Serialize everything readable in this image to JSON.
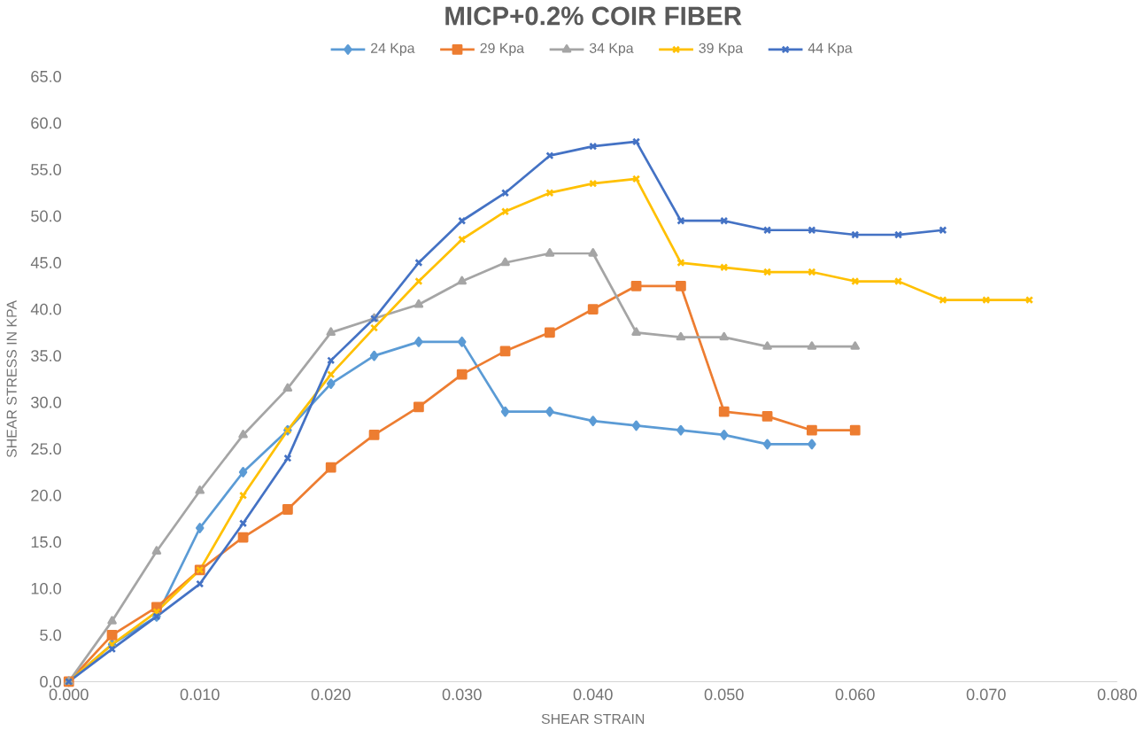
{
  "chart_data": {
    "type": "line",
    "title": "MICP+0.2% COIR FIBER",
    "xlabel": "SHEAR STRAIN",
    "ylabel": "SHEAR STRESS IN KPA",
    "legend": "top",
    "grid": false,
    "xlim": [
      0,
      0.08
    ],
    "ylim": [
      0,
      65
    ],
    "xticks": [
      {
        "value": 0,
        "label": "0.000"
      },
      {
        "value": 0.01,
        "label": "0.010"
      },
      {
        "value": 0.02,
        "label": "0.020"
      },
      {
        "value": 0.03,
        "label": "0.030"
      },
      {
        "value": 0.04,
        "label": "0.040"
      },
      {
        "value": 0.05,
        "label": "0.050"
      },
      {
        "value": 0.06,
        "label": "0.060"
      },
      {
        "value": 0.07,
        "label": "0.070"
      },
      {
        "value": 0.08,
        "label": "0.080"
      }
    ],
    "yticks": [
      {
        "value": 0,
        "label": "0.0"
      },
      {
        "value": 5,
        "label": "5.0"
      },
      {
        "value": 10,
        "label": "10.0"
      },
      {
        "value": 15,
        "label": "15.0"
      },
      {
        "value": 20,
        "label": "20.0"
      },
      {
        "value": 25,
        "label": "25.0"
      },
      {
        "value": 30,
        "label": "30.0"
      },
      {
        "value": 35,
        "label": "35.0"
      },
      {
        "value": 40,
        "label": "40.0"
      },
      {
        "value": 45,
        "label": "45.0"
      },
      {
        "value": 50,
        "label": "50.0"
      },
      {
        "value": 55,
        "label": "55.0"
      },
      {
        "value": 60,
        "label": "60.0"
      },
      {
        "value": 65,
        "label": "65.0"
      }
    ],
    "x": [
      0,
      0.0033,
      0.0067,
      0.01,
      0.0133,
      0.0167,
      0.02,
      0.0233,
      0.0267,
      0.03,
      0.0333,
      0.0367,
      0.04,
      0.0433,
      0.0467,
      0.05,
      0.0533,
      0.0567,
      0.06,
      0.0633,
      0.0667,
      0.07,
      0.0733
    ],
    "series": [
      {
        "name": "24 Kpa",
        "color": "#5b9bd5",
        "marker": "diamond",
        "values": [
          0,
          4,
          7,
          16.5,
          22.5,
          27,
          32,
          35,
          36.5,
          36.5,
          29,
          29,
          28,
          27.5,
          27,
          26.5,
          25.5,
          25.5,
          null,
          null,
          null,
          null,
          null
        ]
      },
      {
        "name": "29 Kpa",
        "color": "#ed7d31",
        "marker": "square",
        "values": [
          0,
          5,
          8,
          12,
          15.5,
          18.5,
          23,
          26.5,
          29.5,
          33,
          35.5,
          37.5,
          40,
          42.5,
          42.5,
          29,
          28.5,
          27,
          27,
          null,
          null,
          null,
          null
        ]
      },
      {
        "name": "34 Kpa",
        "color": "#a5a5a5",
        "marker": "triangle",
        "values": [
          0,
          6.5,
          14,
          20.5,
          26.5,
          31.5,
          37.5,
          39,
          40.5,
          43,
          45,
          46,
          46,
          37.5,
          37,
          37,
          36,
          36,
          36,
          null,
          null,
          null,
          null
        ]
      },
      {
        "name": "39 Kpa",
        "color": "#ffc000",
        "marker": "cross",
        "values": [
          0,
          4,
          7.5,
          12,
          20,
          27,
          33,
          38,
          43,
          47.5,
          50.5,
          52.5,
          53.5,
          54,
          45,
          44.5,
          44,
          44,
          43,
          43,
          41,
          41,
          41
        ]
      },
      {
        "name": "44 Kpa",
        "color": "#4472c4",
        "marker": "cross",
        "values": [
          0,
          3.5,
          7,
          10.5,
          17,
          24,
          34.5,
          39,
          45,
          49.5,
          52.5,
          56.5,
          57.5,
          58,
          49.5,
          49.5,
          48.5,
          48.5,
          48,
          48,
          48.5,
          null,
          null
        ]
      }
    ]
  }
}
